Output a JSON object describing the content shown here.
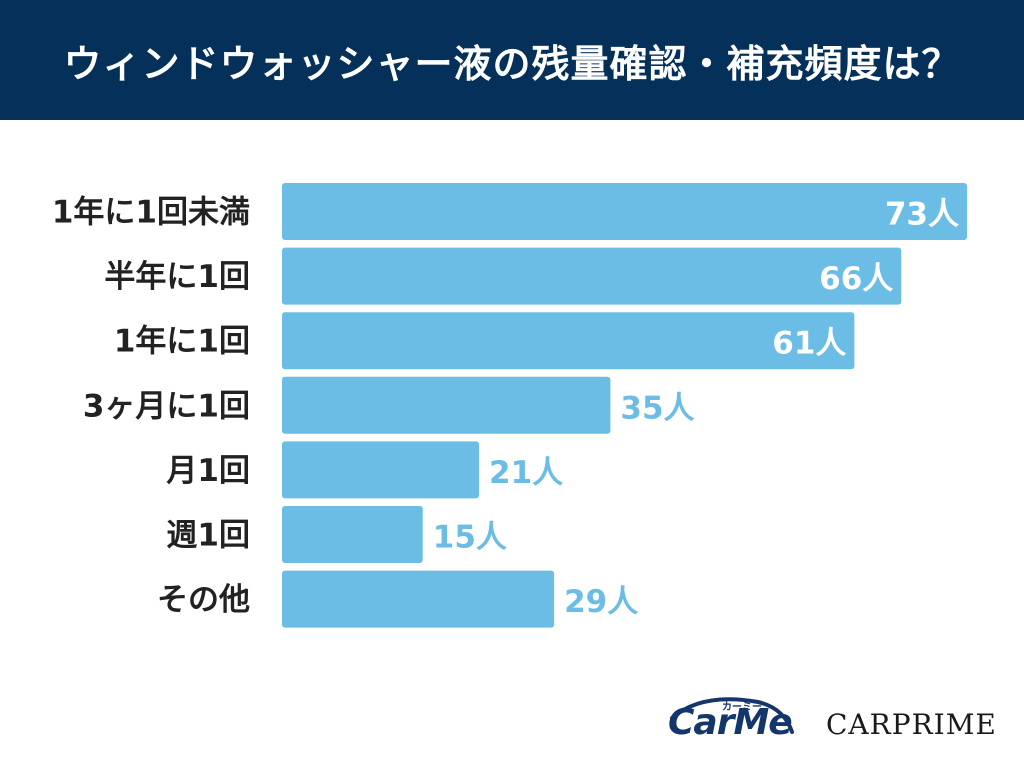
{
  "header": {
    "title": "ウィンドウォッシャー液の残量確認・補充頻度は？"
  },
  "chart_data": {
    "type": "bar",
    "orientation": "horizontal",
    "title": "ウィンドウォッシャー液の残量確認・補充頻度は？",
    "categories": [
      "1年に1回未満",
      "半年に1回",
      "1年に1回",
      "3ヶ月に1回",
      "月1回",
      "週1回",
      "その他"
    ],
    "values": [
      73,
      66,
      61,
      35,
      21,
      15,
      29
    ],
    "value_labels": [
      "73人",
      "66人",
      "61人",
      "35人",
      "21人",
      "15人",
      "29人"
    ],
    "unit": "人",
    "grid": false,
    "legend": "none",
    "colors": {
      "bar": "#6cbde6",
      "label_inside": "#ffffff",
      "label_outside": "#6cbde6"
    }
  },
  "logos": {
    "carme": {
      "text": "CarMe",
      "kana": "カーミー"
    },
    "carprime": {
      "text": "CARPRIME"
    }
  }
}
